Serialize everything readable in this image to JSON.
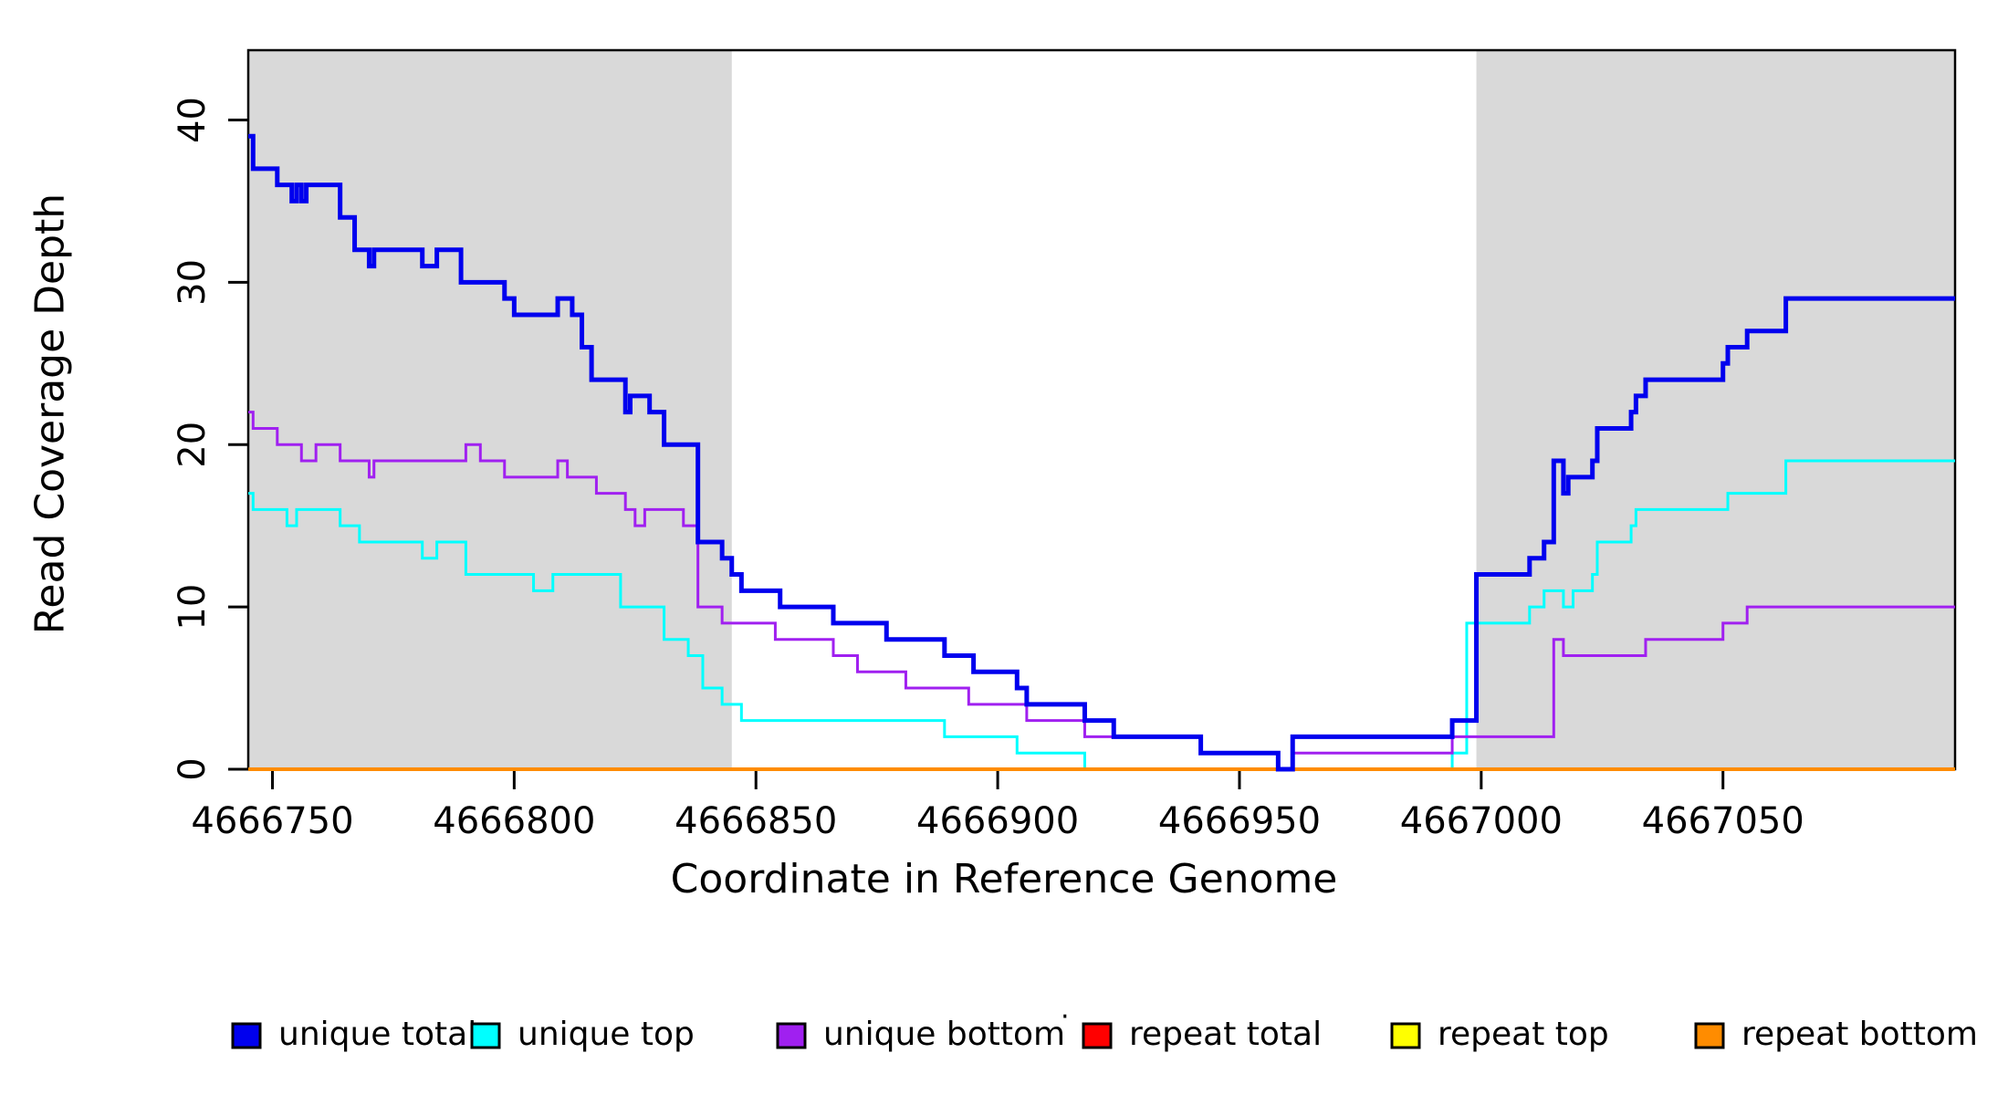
{
  "chart_data": {
    "type": "line",
    "subtype": "step-coverage",
    "title": "",
    "xlabel": "Coordinate in Reference Genome",
    "ylabel": "Read Coverage Depth",
    "xlim": [
      4666745,
      4667098
    ],
    "ylim": [
      0,
      44.3
    ],
    "x_ticks": [
      4666750,
      4666800,
      4666850,
      4666900,
      4666950,
      4667000,
      4667050
    ],
    "y_ticks": [
      0,
      10,
      20,
      30,
      40
    ],
    "grid": "off",
    "legend_position": "bottom",
    "background_color": "#ffffff",
    "shaded_region_color": "#d9d9d9",
    "shaded_regions": [
      {
        "name": "left-repeat-flank",
        "from": 4666745,
        "to": 4666845
      },
      {
        "name": "right-repeat-flank",
        "from": 4666999,
        "to": 4667098
      }
    ],
    "series": [
      {
        "name": "unique total",
        "color": "#0000EE",
        "width": 5,
        "points": [
          [
            4666745,
            39
          ],
          [
            4666746,
            37
          ],
          [
            4666751,
            36
          ],
          [
            4666754,
            35
          ],
          [
            4666755,
            36
          ],
          [
            4666756,
            35
          ],
          [
            4666757,
            36
          ],
          [
            4666764,
            34
          ],
          [
            4666767,
            32
          ],
          [
            4666770,
            31
          ],
          [
            4666771,
            32
          ],
          [
            4666781,
            31
          ],
          [
            4666784,
            32
          ],
          [
            4666789,
            30
          ],
          [
            4666798,
            29
          ],
          [
            4666800,
            28
          ],
          [
            4666809,
            29
          ],
          [
            4666812,
            28
          ],
          [
            4666814,
            26
          ],
          [
            4666816,
            24
          ],
          [
            4666823,
            22
          ],
          [
            4666824,
            23
          ],
          [
            4666828,
            22
          ],
          [
            4666831,
            20
          ],
          [
            4666838,
            14
          ],
          [
            4666843,
            13
          ],
          [
            4666845,
            12
          ],
          [
            4666847,
            11
          ],
          [
            4666855,
            10
          ],
          [
            4666866,
            9
          ],
          [
            4666877,
            8
          ],
          [
            4666889,
            7
          ],
          [
            4666895,
            6
          ],
          [
            4666904,
            5
          ],
          [
            4666906,
            4
          ],
          [
            4666918,
            3
          ],
          [
            4666924,
            2
          ],
          [
            4666942,
            1
          ],
          [
            4666958,
            0
          ],
          [
            4666961,
            2
          ],
          [
            4666994,
            3
          ],
          [
            4666999,
            12
          ],
          [
            4667010,
            13
          ],
          [
            4667013,
            14
          ],
          [
            4667015,
            19
          ],
          [
            4667017,
            17
          ],
          [
            4667018,
            18
          ],
          [
            4667023,
            19
          ],
          [
            4667024,
            21
          ],
          [
            4667031,
            22
          ],
          [
            4667032,
            23
          ],
          [
            4667034,
            24
          ],
          [
            4667050,
            25
          ],
          [
            4667051,
            26
          ],
          [
            4667055,
            27
          ],
          [
            4667063,
            29
          ],
          [
            4667098,
            29
          ]
        ]
      },
      {
        "name": "unique top",
        "color": "#00FFFF",
        "width": 3,
        "points": [
          [
            4666745,
            17
          ],
          [
            4666746,
            16
          ],
          [
            4666753,
            15
          ],
          [
            4666755,
            16
          ],
          [
            4666764,
            15
          ],
          [
            4666768,
            14
          ],
          [
            4666781,
            13
          ],
          [
            4666784,
            14
          ],
          [
            4666790,
            12
          ],
          [
            4666804,
            11
          ],
          [
            4666808,
            12
          ],
          [
            4666822,
            10
          ],
          [
            4666831,
            8
          ],
          [
            4666836,
            7
          ],
          [
            4666839,
            5
          ],
          [
            4666843,
            4
          ],
          [
            4666847,
            3
          ],
          [
            4666889,
            2
          ],
          [
            4666904,
            1
          ],
          [
            4666918,
            0
          ],
          [
            4666994,
            1
          ],
          [
            4666997,
            9
          ],
          [
            4667010,
            10
          ],
          [
            4667013,
            11
          ],
          [
            4667017,
            10
          ],
          [
            4667019,
            11
          ],
          [
            4667023,
            12
          ],
          [
            4667024,
            14
          ],
          [
            4667031,
            15
          ],
          [
            4667032,
            16
          ],
          [
            4667051,
            17
          ],
          [
            4667063,
            19
          ],
          [
            4667098,
            19
          ]
        ]
      },
      {
        "name": "unique bottom",
        "color": "#A020F0",
        "width": 3,
        "points": [
          [
            4666745,
            22
          ],
          [
            4666746,
            21
          ],
          [
            4666751,
            20
          ],
          [
            4666756,
            19
          ],
          [
            4666759,
            20
          ],
          [
            4666764,
            19
          ],
          [
            4666770,
            18
          ],
          [
            4666771,
            19
          ],
          [
            4666790,
            20
          ],
          [
            4666793,
            19
          ],
          [
            4666798,
            18
          ],
          [
            4666809,
            19
          ],
          [
            4666811,
            18
          ],
          [
            4666817,
            17
          ],
          [
            4666823,
            16
          ],
          [
            4666825,
            15
          ],
          [
            4666827,
            16
          ],
          [
            4666835,
            15
          ],
          [
            4666838,
            10
          ],
          [
            4666843,
            9
          ],
          [
            4666854,
            8
          ],
          [
            4666866,
            7
          ],
          [
            4666871,
            6
          ],
          [
            4666881,
            5
          ],
          [
            4666894,
            4
          ],
          [
            4666906,
            3
          ],
          [
            4666918,
            2
          ],
          [
            4666942,
            1
          ],
          [
            4666958,
            0
          ],
          [
            4666961,
            1
          ],
          [
            4666994,
            2
          ],
          [
            4667015,
            8
          ],
          [
            4667017,
            7
          ],
          [
            4667034,
            8
          ],
          [
            4667050,
            9
          ],
          [
            4667055,
            10
          ],
          [
            4667098,
            10
          ]
        ]
      },
      {
        "name": "repeat total",
        "color": "#FF0000",
        "width": 2.5,
        "points": [
          [
            4666745,
            0
          ],
          [
            4667098,
            0
          ]
        ]
      },
      {
        "name": "repeat top",
        "color": "#FFFF00",
        "width": 2.5,
        "points": [
          [
            4666745,
            0
          ],
          [
            4667098,
            0
          ]
        ]
      },
      {
        "name": "repeat bottom",
        "color": "#FF8C00",
        "width": 4,
        "points": [
          [
            4666745,
            0
          ],
          [
            4667098,
            0
          ]
        ]
      }
    ],
    "legend_entries": [
      {
        "label": "unique total",
        "color": "#0000EE"
      },
      {
        "label": "unique top",
        "color": "#00FFFF"
      },
      {
        "label": "unique bottom",
        "color": "#A020F0"
      },
      {
        "label": "repeat total",
        "color": "#FF0000"
      },
      {
        "label": "repeat top",
        "color": "#FFFF00"
      },
      {
        "label": "repeat bottom",
        "color": "#FF8C00"
      }
    ],
    "stray_dot": "·"
  }
}
